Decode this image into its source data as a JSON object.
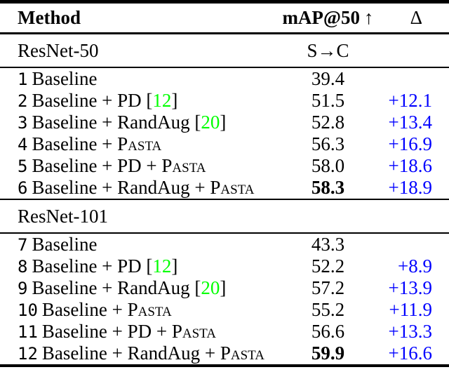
{
  "page": {
    "background": "#ffffff"
  },
  "table": {
    "columns": {
      "method": "Method",
      "map": "mAP@50",
      "map_arrow": "↑",
      "delta": "Δ"
    },
    "colors": {
      "body_text": "#000000",
      "delta_text": "#0000ff",
      "citation_text": "#00ff00",
      "rule": "#000000"
    },
    "sections": [
      {
        "name": "ResNet-50",
        "shift": "S→C",
        "rows": [
          {
            "num": "1",
            "parts": [
              {
                "text": "Baseline"
              }
            ],
            "map": "39.4",
            "bold": false,
            "delta": ""
          },
          {
            "num": "2",
            "parts": [
              {
                "text": "Baseline + PD ["
              },
              {
                "text": "12",
                "style": "cite"
              },
              {
                "text": "]"
              }
            ],
            "map": "51.5",
            "bold": false,
            "delta": "+12.1"
          },
          {
            "num": "3",
            "parts": [
              {
                "text": "Baseline + RandAug ["
              },
              {
                "text": "20",
                "style": "cite"
              },
              {
                "text": "]"
              }
            ],
            "map": "52.8",
            "bold": false,
            "delta": "+13.4"
          },
          {
            "num": "4",
            "parts": [
              {
                "text": "Baseline + "
              },
              {
                "text": "Pasta",
                "style": "smallcaps"
              }
            ],
            "map": "56.3",
            "bold": false,
            "delta": "+16.9"
          },
          {
            "num": "5",
            "parts": [
              {
                "text": "Baseline + PD + "
              },
              {
                "text": "Pasta",
                "style": "smallcaps"
              }
            ],
            "map": "58.0",
            "bold": false,
            "delta": "+18.6"
          },
          {
            "num": "6",
            "parts": [
              {
                "text": "Baseline + RandAug + "
              },
              {
                "text": "Pasta",
                "style": "smallcaps"
              }
            ],
            "map": "58.3",
            "bold": true,
            "delta": "+18.9"
          }
        ]
      },
      {
        "name": "ResNet-101",
        "shift": "",
        "rows": [
          {
            "num": "7",
            "parts": [
              {
                "text": "Baseline"
              }
            ],
            "map": "43.3",
            "bold": false,
            "delta": ""
          },
          {
            "num": "8",
            "parts": [
              {
                "text": "Baseline + PD ["
              },
              {
                "text": "12",
                "style": "cite"
              },
              {
                "text": "]"
              }
            ],
            "map": "52.2",
            "bold": false,
            "delta": "+8.9"
          },
          {
            "num": "9",
            "parts": [
              {
                "text": "Baseline + RandAug ["
              },
              {
                "text": "20",
                "style": "cite"
              },
              {
                "text": "]"
              }
            ],
            "map": "57.2",
            "bold": false,
            "delta": "+13.9"
          },
          {
            "num": "10",
            "parts": [
              {
                "text": "Baseline + "
              },
              {
                "text": "Pasta",
                "style": "smallcaps"
              }
            ],
            "map": "55.2",
            "bold": false,
            "delta": "+11.9"
          },
          {
            "num": "11",
            "parts": [
              {
                "text": "Baseline + PD + "
              },
              {
                "text": "Pasta",
                "style": "smallcaps"
              }
            ],
            "map": "56.6",
            "bold": false,
            "delta": "+13.3"
          },
          {
            "num": "12",
            "parts": [
              {
                "text": "Baseline + RandAug + "
              },
              {
                "text": "Pasta",
                "style": "smallcaps"
              }
            ],
            "map": "59.9",
            "bold": true,
            "delta": "+16.6"
          }
        ]
      }
    ]
  }
}
